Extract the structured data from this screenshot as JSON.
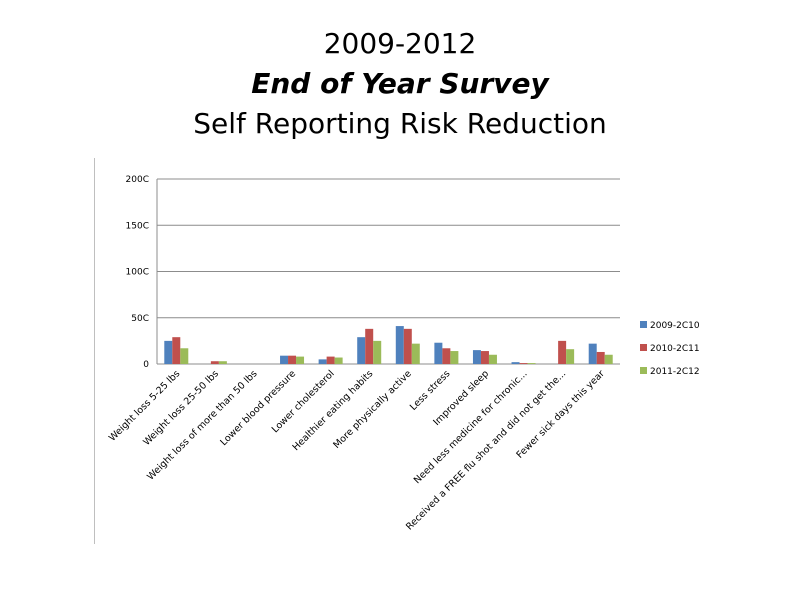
{
  "slide": {
    "title_line1": "2009-2012",
    "title_line2": "End of Year Survey",
    "title_line3": "Self Reporting Risk Reduction"
  },
  "chart_data": {
    "type": "bar",
    "title": "",
    "xlabel": "",
    "ylabel": "",
    "ylim": [
      0,
      200
    ],
    "yticks": [
      {
        "value": 0,
        "label": "0"
      },
      {
        "value": 50,
        "label": "50C"
      },
      {
        "value": 100,
        "label": "100C"
      },
      {
        "value": 150,
        "label": "150C"
      },
      {
        "value": 200,
        "label": "200C"
      }
    ],
    "grid": true,
    "legend_position": "right",
    "categories": [
      "Weight loss 5-25 lbs",
      "Weight loss 25-50 lbs",
      "Weight loss of more than 50 lbs",
      "Lower blood pressure",
      "Lower cholesterol",
      "Healthier eating habits",
      "More physically active",
      "Less stress",
      "Improved sleep",
      "Need less medicine for chronic...",
      "Received a FREE flu shot and did not get the...",
      "Fewer sick days this year"
    ],
    "series": [
      {
        "name": "2009-2C10",
        "color": "#4f81bd",
        "values": [
          25,
          0,
          0,
          9,
          5,
          29,
          41,
          23,
          15,
          2,
          0,
          22
        ]
      },
      {
        "name": "2010-2C11",
        "color": "#c0504d",
        "values": [
          29,
          3,
          0,
          9,
          8,
          38,
          38,
          17,
          14,
          1,
          25,
          13
        ]
      },
      {
        "name": "2011-2C12",
        "color": "#9bbb59",
        "values": [
          17,
          3,
          0,
          8,
          7,
          25,
          22,
          14,
          10,
          1,
          16,
          10
        ]
      }
    ]
  }
}
